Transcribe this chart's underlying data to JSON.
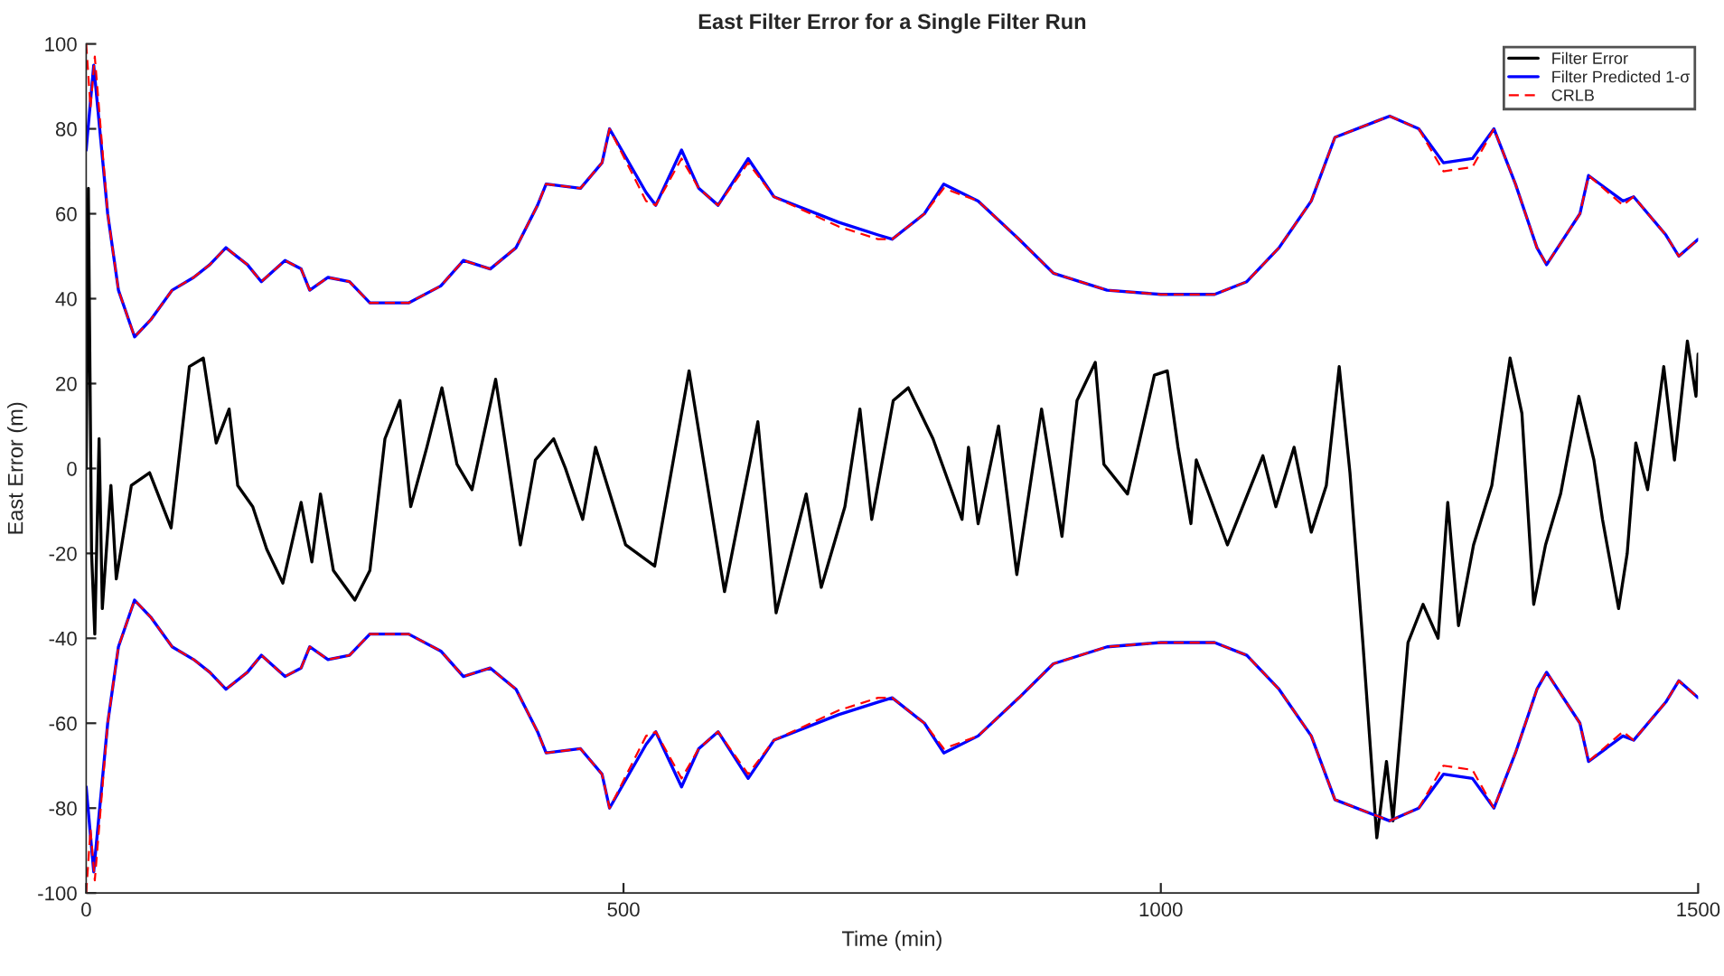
{
  "chart_data": {
    "type": "line",
    "title": "East Filter Error for a Single Filter Run",
    "xlabel": "Time (min)",
    "ylabel": "East Error (m)",
    "xlim": [
      0,
      1500
    ],
    "xticks": [
      0,
      500,
      1000,
      1500
    ],
    "ylim": [
      -100,
      100
    ],
    "yticks": [
      -100,
      -80,
      -60,
      -40,
      -20,
      0,
      20,
      40,
      60,
      80,
      100
    ],
    "grid": false,
    "legend": "top right",
    "series": [
      {
        "name": "Filter Error",
        "color": "#000000",
        "line_style": "solid",
        "x": [
          0,
          2,
          5,
          8,
          12,
          15,
          23,
          28,
          42,
          59,
          79,
          96,
          109,
          121,
          133,
          141,
          155,
          168,
          183,
          200,
          210,
          218,
          230,
          250,
          264,
          278,
          292,
          302,
          317,
          331,
          345,
          359,
          381,
          390,
          404,
          418,
          435,
          446,
          462,
          474,
          502,
          529,
          561,
          594,
          625,
          642,
          670,
          684,
          706,
          720,
          731,
          751,
          765,
          788,
          815,
          821,
          830,
          849,
          866,
          889,
          908,
          922,
          939,
          947,
          969,
          994,
          1006,
          1016,
          1028,
          1033,
          1062,
          1095,
          1107,
          1124,
          1140,
          1154,
          1166,
          1176,
          1188,
          1201,
          1210,
          1216,
          1230,
          1244,
          1258,
          1267,
          1277,
          1291,
          1308,
          1325,
          1336,
          1347,
          1358,
          1372,
          1389,
          1403,
          1411,
          1426,
          1434,
          1442,
          1453,
          1468,
          1478,
          1490,
          1498,
          1500
        ],
        "values": [
          0,
          66,
          -20,
          -39,
          7,
          -33,
          -4,
          -26,
          -4,
          -1,
          -14,
          24,
          26,
          6,
          14,
          -4,
          -9,
          -19,
          -27,
          -8,
          -22,
          -6,
          -24,
          -31,
          -24,
          7,
          16,
          -9,
          5,
          19,
          1,
          -5,
          21,
          6,
          -18,
          2,
          7,
          0,
          -12,
          5,
          -18,
          -23,
          23,
          -29,
          11,
          -34,
          -6,
          -28,
          -9,
          14,
          -12,
          16,
          19,
          7,
          -12,
          5,
          -13,
          10,
          -25,
          14,
          -16,
          16,
          25,
          1,
          -6,
          22,
          23,
          5,
          -13,
          2,
          -18,
          3,
          -9,
          5,
          -15,
          -4,
          24,
          -1,
          -41,
          -87,
          -69,
          -83,
          -41,
          -32,
          -40,
          -8,
          -37,
          -18,
          -4,
          26,
          13,
          -32,
          -18,
          -6,
          17,
          2,
          -12,
          -33,
          -20,
          6,
          -5,
          24,
          2,
          30,
          17,
          27
        ]
      },
      {
        "name": "Filter Predicted 1-σ",
        "color": "#0000ff",
        "line_style": "solid",
        "x": [
          0,
          1,
          7,
          20,
          30,
          45,
          60,
          80,
          100,
          115,
          130,
          150,
          163,
          185,
          200,
          208,
          225,
          245,
          264,
          300,
          330,
          351,
          376,
          400,
          420,
          428,
          460,
          480,
          487,
          521,
          530,
          554,
          570,
          588,
          616,
          640,
          700,
          737,
          750,
          780,
          798,
          830,
          868,
          900,
          950,
          1000,
          1050,
          1080,
          1110,
          1140,
          1162,
          1213,
          1240,
          1263,
          1290,
          1310,
          1330,
          1350,
          1359,
          1390,
          1398,
          1430,
          1440,
          1470,
          1482,
          1500
        ],
        "values": [
          75,
          78,
          95,
          60,
          42,
          31,
          35,
          42,
          45,
          48,
          52,
          48,
          44,
          49,
          47,
          42,
          45,
          44,
          39,
          39,
          43,
          49,
          47,
          52,
          62,
          67,
          66,
          72,
          80,
          65,
          62,
          75,
          66,
          62,
          73,
          64,
          58,
          55,
          54,
          60,
          67,
          63,
          54,
          46,
          42,
          41,
          41,
          44,
          52,
          63,
          78,
          83,
          80,
          72,
          73,
          80,
          67,
          52,
          48,
          60,
          69,
          63,
          64,
          55,
          50,
          54
        ]
      },
      {
        "color": "#0000ff",
        "line_style": "solid",
        "x": [
          0,
          1,
          7,
          20,
          30,
          45,
          60,
          80,
          100,
          115,
          130,
          150,
          163,
          185,
          200,
          208,
          225,
          245,
          264,
          300,
          330,
          351,
          376,
          400,
          420,
          428,
          460,
          480,
          487,
          521,
          530,
          554,
          570,
          588,
          616,
          640,
          700,
          737,
          750,
          780,
          798,
          830,
          868,
          900,
          950,
          1000,
          1050,
          1080,
          1110,
          1140,
          1162,
          1213,
          1240,
          1263,
          1290,
          1310,
          1330,
          1350,
          1359,
          1390,
          1398,
          1430,
          1440,
          1470,
          1482,
          1500
        ],
        "values": [
          -75,
          -78,
          -95,
          -60,
          -42,
          -31,
          -35,
          -42,
          -45,
          -48,
          -52,
          -48,
          -44,
          -49,
          -47,
          -42,
          -45,
          -44,
          -39,
          -39,
          -43,
          -49,
          -47,
          -52,
          -62,
          -67,
          -66,
          -72,
          -80,
          -65,
          -62,
          -75,
          -66,
          -62,
          -73,
          -64,
          -58,
          -55,
          -54,
          -60,
          -67,
          -63,
          -54,
          -46,
          -42,
          -41,
          -41,
          -44,
          -52,
          -63,
          -78,
          -83,
          -80,
          -72,
          -73,
          -80,
          -67,
          -52,
          -48,
          -60,
          -69,
          -63,
          -64,
          -55,
          -50,
          -54
        ]
      },
      {
        "name": "CRLB",
        "color": "#ff0000",
        "line_style": "dashed",
        "x": [
          0,
          4,
          8,
          20,
          30,
          45,
          60,
          80,
          100,
          115,
          130,
          150,
          163,
          185,
          200,
          208,
          225,
          245,
          264,
          300,
          330,
          351,
          376,
          400,
          420,
          428,
          460,
          480,
          487,
          521,
          530,
          554,
          570,
          588,
          616,
          640,
          700,
          737,
          750,
          780,
          798,
          830,
          868,
          900,
          950,
          1000,
          1050,
          1080,
          1110,
          1140,
          1162,
          1213,
          1240,
          1263,
          1290,
          1310,
          1330,
          1350,
          1359,
          1390,
          1398,
          1430,
          1440,
          1470,
          1482,
          1500
        ],
        "values": [
          100,
          85,
          97,
          60,
          42,
          31,
          35,
          42,
          45,
          48,
          52,
          48,
          44,
          49,
          47,
          42,
          45,
          44,
          39,
          39,
          43,
          49,
          47,
          52,
          62,
          67,
          66,
          72,
          80,
          63,
          62,
          73,
          66,
          62,
          72,
          64,
          57,
          54,
          54,
          60,
          66,
          63,
          54,
          46,
          42,
          41,
          41,
          44,
          52,
          63,
          78,
          83,
          80,
          70,
          71,
          80,
          67,
          52,
          48,
          60,
          69,
          62,
          64,
          55,
          50,
          54
        ]
      },
      {
        "color": "#ff0000",
        "line_style": "dashed",
        "x": [
          0,
          4,
          8,
          20,
          30,
          45,
          60,
          80,
          100,
          115,
          130,
          150,
          163,
          185,
          200,
          208,
          225,
          245,
          264,
          300,
          330,
          351,
          376,
          400,
          420,
          428,
          460,
          480,
          487,
          521,
          530,
          554,
          570,
          588,
          616,
          640,
          700,
          737,
          750,
          780,
          798,
          830,
          868,
          900,
          950,
          1000,
          1050,
          1080,
          1110,
          1140,
          1162,
          1213,
          1240,
          1263,
          1290,
          1310,
          1330,
          1350,
          1359,
          1390,
          1398,
          1430,
          1440,
          1470,
          1482,
          1500
        ],
        "values": [
          -100,
          -85,
          -97,
          -60,
          -42,
          -31,
          -35,
          -42,
          -45,
          -48,
          -52,
          -48,
          -44,
          -49,
          -47,
          -42,
          -45,
          -44,
          -39,
          -39,
          -43,
          -49,
          -47,
          -52,
          -62,
          -67,
          -66,
          -72,
          -80,
          -63,
          -62,
          -73,
          -66,
          -62,
          -72,
          -64,
          -57,
          -54,
          -54,
          -60,
          -66,
          -63,
          -54,
          -46,
          -42,
          -41,
          -41,
          -44,
          -52,
          -63,
          -78,
          -83,
          -80,
          -70,
          -71,
          -80,
          -67,
          -52,
          -48,
          -60,
          -69,
          -62,
          -64,
          -55,
          -50,
          -54
        ]
      }
    ]
  }
}
